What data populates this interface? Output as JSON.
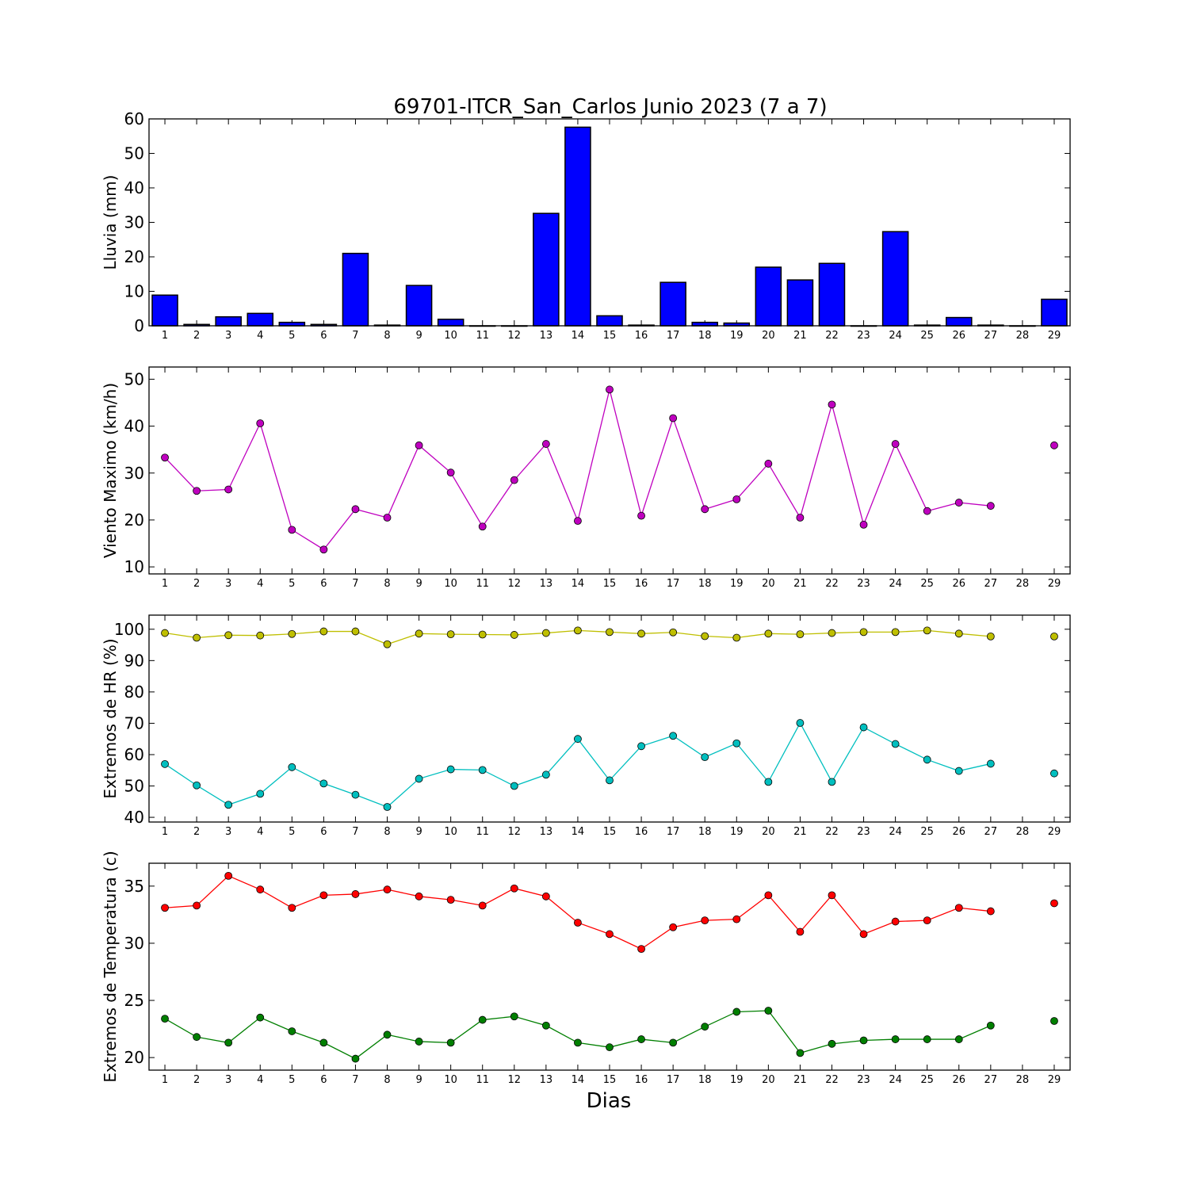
{
  "figure": {
    "title": "69701-ITCR_San_Carlos Junio 2023  (7 a 7)",
    "xlabel": "Dias"
  },
  "chart_data": [
    {
      "id": "lluvia",
      "type": "bar",
      "ylabel": "Lluvia (mm)",
      "ylim": [
        0,
        60
      ],
      "yticks": [
        0,
        10,
        20,
        30,
        40,
        50,
        60
      ],
      "x": [
        1,
        2,
        3,
        4,
        5,
        6,
        7,
        8,
        9,
        10,
        11,
        12,
        13,
        14,
        15,
        16,
        17,
        18,
        19,
        20,
        21,
        22,
        23,
        24,
        25,
        26,
        27,
        28,
        29
      ],
      "xlim": [
        0.5,
        29.5
      ],
      "series": [
        {
          "color": "#0000ff",
          "values": [
            8.9,
            0.4,
            2.6,
            3.6,
            1.0,
            0.4,
            21.0,
            0.2,
            11.7,
            1.9,
            0.0,
            0.0,
            32.6,
            57.6,
            2.9,
            0.2,
            12.6,
            1.0,
            0.8,
            17.0,
            13.3,
            18.1,
            0.0,
            27.3,
            0.2,
            2.4,
            0.2,
            0.0,
            7.7
          ]
        }
      ],
      "grid": false
    },
    {
      "id": "viento",
      "type": "line",
      "ylabel": "Viento Maximo (km/h)",
      "ylim": [
        8.5,
        52.6
      ],
      "yticks": [
        10,
        20,
        30,
        40,
        50
      ],
      "x": [
        1,
        2,
        3,
        4,
        5,
        6,
        7,
        8,
        9,
        10,
        11,
        12,
        13,
        14,
        15,
        16,
        17,
        18,
        19,
        20,
        21,
        22,
        23,
        24,
        25,
        26,
        27,
        28,
        29
      ],
      "xlim": [
        0.5,
        29.5
      ],
      "series": [
        {
          "color": "#bf00bf",
          "values": [
            33.3,
            26.2,
            26.5,
            40.6,
            17.9,
            13.7,
            22.3,
            20.5,
            35.9,
            30.1,
            18.6,
            28.5,
            36.2,
            19.8,
            47.8,
            20.9,
            41.7,
            22.3,
            24.4,
            32.0,
            20.5,
            44.6,
            19.0,
            36.2,
            21.9,
            23.7,
            23.0,
            null,
            35.9
          ]
        }
      ],
      "grid": false
    },
    {
      "id": "hr",
      "type": "line",
      "ylabel": "Extremos de HR (%)",
      "ylim": [
        38.5,
        104.5
      ],
      "yticks": [
        40,
        50,
        60,
        70,
        80,
        90,
        100
      ],
      "x": [
        1,
        2,
        3,
        4,
        5,
        6,
        7,
        8,
        9,
        10,
        11,
        12,
        13,
        14,
        15,
        16,
        17,
        18,
        19,
        20,
        21,
        22,
        23,
        24,
        25,
        26,
        27,
        28,
        29
      ],
      "xlim": [
        0.5,
        29.5
      ],
      "series": [
        {
          "color": "#bfbf00",
          "values": [
            98.8,
            97.3,
            98.1,
            98.0,
            98.5,
            99.3,
            99.3,
            95.2,
            98.6,
            98.4,
            98.3,
            98.2,
            98.8,
            99.6,
            99.1,
            98.6,
            99.0,
            97.8,
            97.3,
            98.6,
            98.4,
            98.8,
            99.1,
            99.1,
            99.6,
            98.6,
            97.7,
            null,
            97.7
          ]
        },
        {
          "color": "#00bfbf",
          "values": [
            57.0,
            50.2,
            44.0,
            47.5,
            56.0,
            50.8,
            47.2,
            43.3,
            52.3,
            55.3,
            55.1,
            50.0,
            53.6,
            65.0,
            51.8,
            62.7,
            66.0,
            59.2,
            63.6,
            51.3,
            70.1,
            51.3,
            68.7,
            63.4,
            58.4,
            54.8,
            57.1,
            null,
            54.0
          ]
        }
      ],
      "grid": false
    },
    {
      "id": "temperatura",
      "type": "line",
      "ylabel": "Extremos de Temperatura (c)",
      "ylim": [
        18.9,
        37.0
      ],
      "yticks": [
        20,
        25,
        30,
        35
      ],
      "x": [
        1,
        2,
        3,
        4,
        5,
        6,
        7,
        8,
        9,
        10,
        11,
        12,
        13,
        14,
        15,
        16,
        17,
        18,
        19,
        20,
        21,
        22,
        23,
        24,
        25,
        26,
        27,
        28,
        29
      ],
      "xlim": [
        0.5,
        29.5
      ],
      "series": [
        {
          "color": "#ff0000",
          "values": [
            33.1,
            33.3,
            35.9,
            34.7,
            33.1,
            34.2,
            34.3,
            34.7,
            34.1,
            33.8,
            33.3,
            34.8,
            34.1,
            31.8,
            30.8,
            29.5,
            31.4,
            32.0,
            32.1,
            34.2,
            31.0,
            34.2,
            30.8,
            31.9,
            32.0,
            33.1,
            32.8,
            null,
            33.5
          ]
        },
        {
          "color": "#007f00",
          "values": [
            23.4,
            21.8,
            21.3,
            23.5,
            22.3,
            21.3,
            19.9,
            22.0,
            21.4,
            21.3,
            23.3,
            23.6,
            22.8,
            21.3,
            20.9,
            21.6,
            21.3,
            22.7,
            24.0,
            24.1,
            20.4,
            21.2,
            21.5,
            21.6,
            21.6,
            21.6,
            22.8,
            null,
            23.2
          ]
        }
      ],
      "grid": false
    }
  ]
}
